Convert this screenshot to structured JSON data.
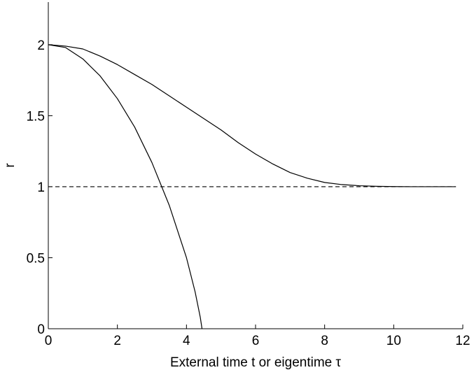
{
  "chart_data": {
    "type": "line",
    "title": "",
    "xlabel": "External time t or eigentime τ",
    "ylabel": "r",
    "xlim": [
      0,
      12
    ],
    "ylim": [
      0,
      2.3
    ],
    "xticks": [
      "0",
      "2",
      "4",
      "6",
      "8",
      "10",
      "12"
    ],
    "yticks": [
      "0",
      "0.5",
      "1",
      "1.5",
      "2"
    ],
    "grid": false,
    "legend": "none",
    "colors": {
      "curves": "#000000",
      "reference": "#000000",
      "axes": "#000000",
      "background": "#ffffff"
    },
    "series": [
      {
        "x": [
          0,
          0.5,
          1,
          1.5,
          2,
          2.5,
          3,
          3.5,
          4,
          4.25,
          4.4,
          4.45
        ],
        "values": [
          2,
          1.98,
          1.9,
          1.78,
          1.62,
          1.42,
          1.17,
          0.87,
          0.5,
          0.26,
          0.08,
          0
        ]
      },
      {
        "x": [
          0,
          0.5,
          1,
          1.5,
          2,
          2.5,
          3,
          3.5,
          4,
          4.5,
          5,
          5.5,
          6,
          6.5,
          7,
          7.5,
          8,
          8.5,
          9,
          9.5,
          10,
          10.5,
          11,
          11.5,
          11.8
        ],
        "values": [
          2,
          1.99,
          1.97,
          1.92,
          1.86,
          1.79,
          1.72,
          1.64,
          1.56,
          1.48,
          1.4,
          1.31,
          1.23,
          1.16,
          1.1,
          1.06,
          1.03,
          1.015,
          1.007,
          1.003,
          1.001,
          1.0,
          1.0,
          1.0,
          1.0
        ]
      },
      {
        "style": "dashed",
        "x": [
          0,
          11.8
        ],
        "values": [
          1,
          1
        ]
      }
    ]
  }
}
